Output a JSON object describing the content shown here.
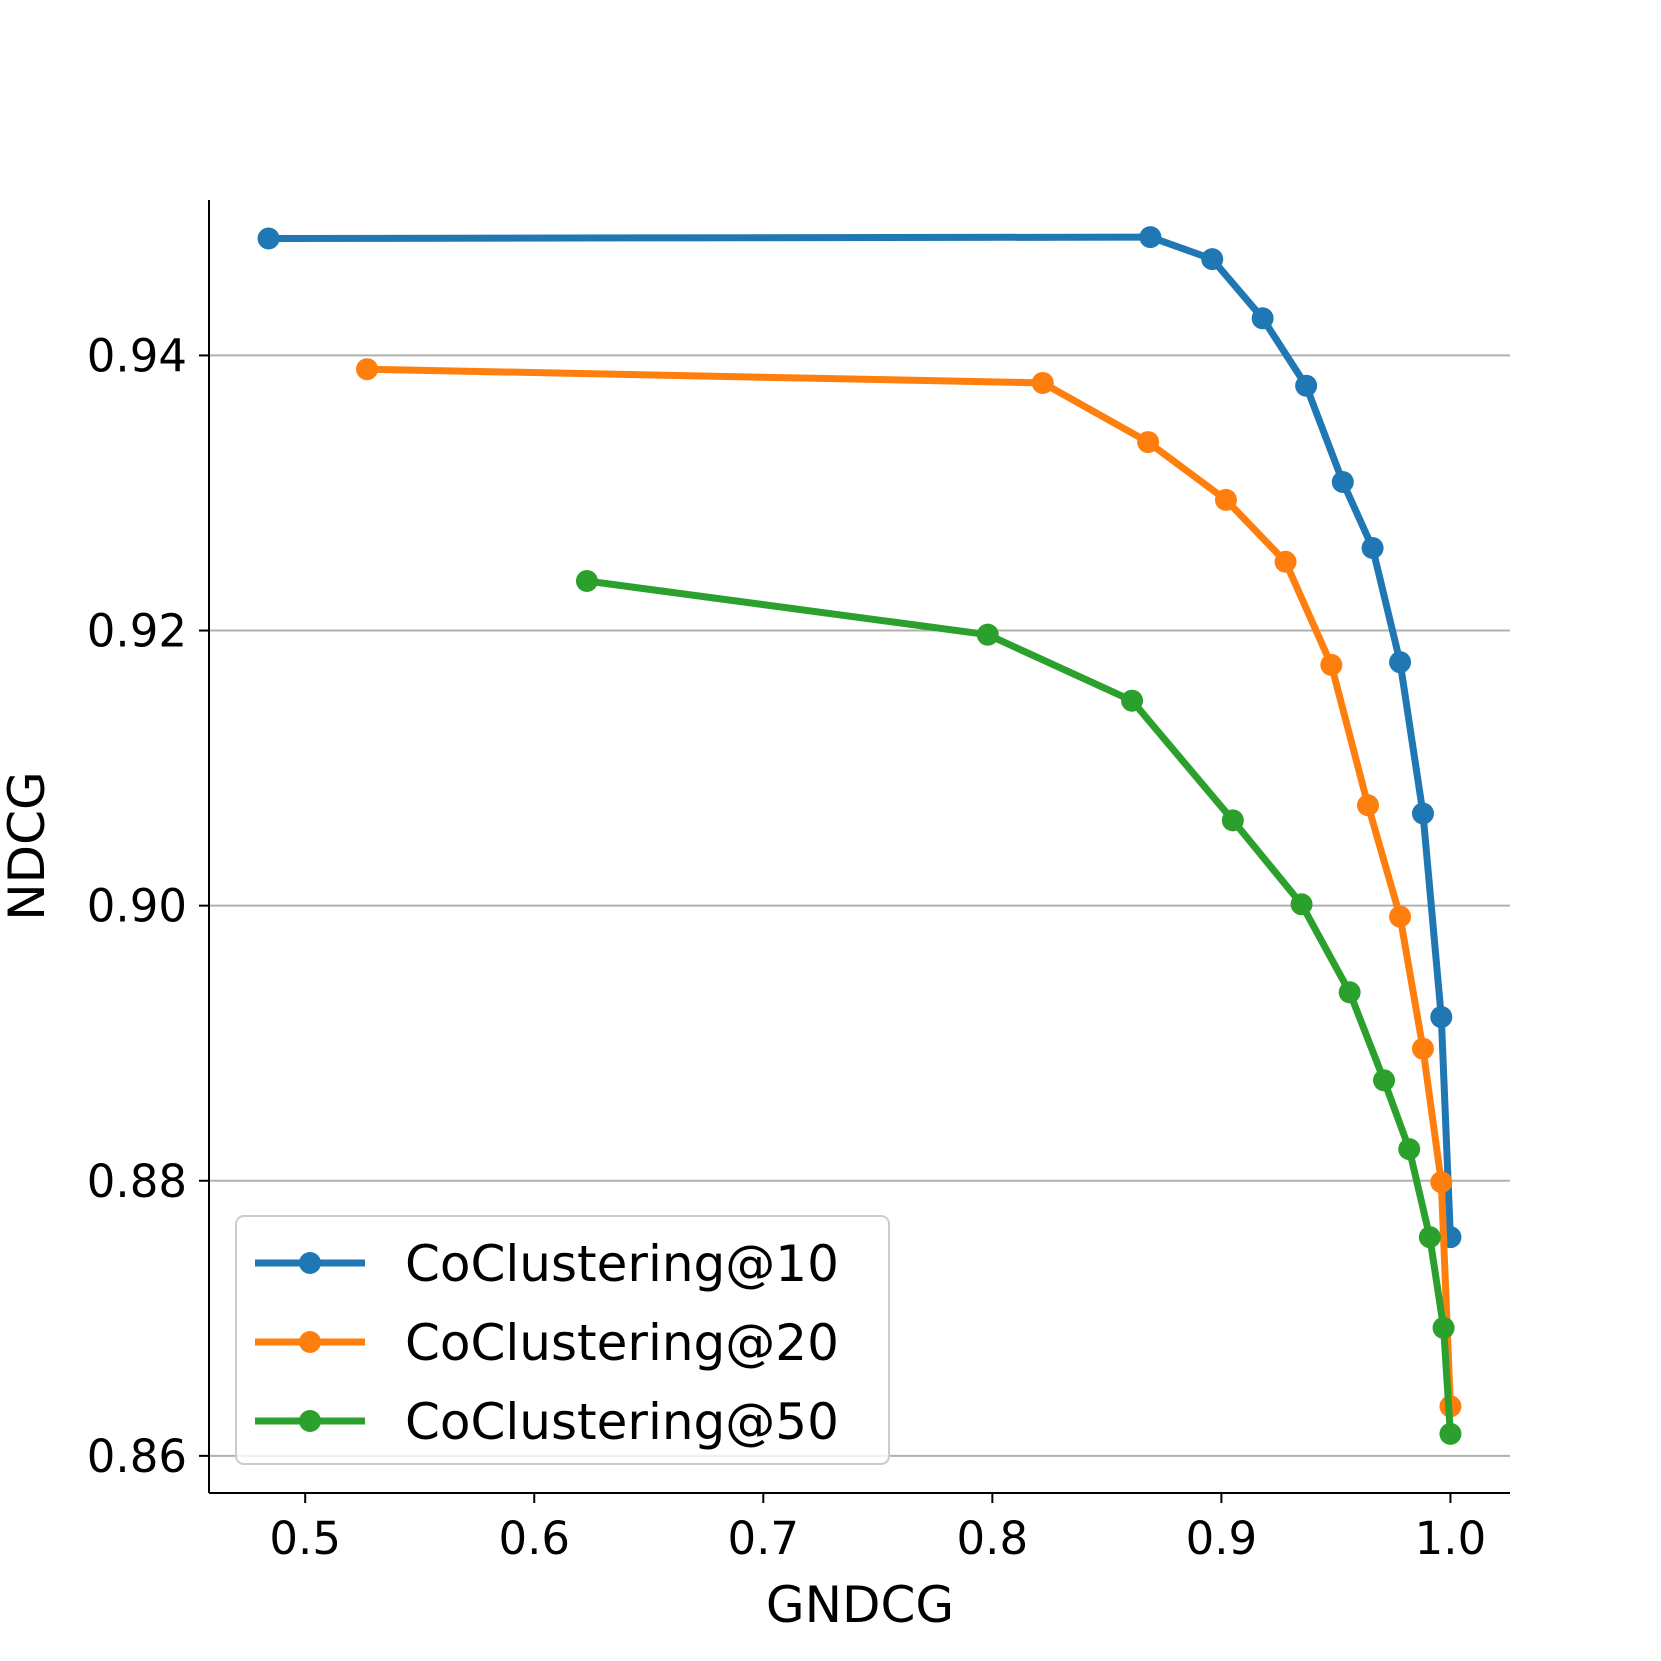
{
  "chart_data": {
    "type": "line",
    "title": "",
    "xlabel": "GNDCG",
    "ylabel": "NDCG",
    "xlim": [
      0.458,
      1.026
    ],
    "ylim": [
      0.8573,
      0.9513
    ],
    "xticks": [
      "0.5",
      "0.6",
      "0.7",
      "0.8",
      "0.9",
      "1.0"
    ],
    "yticks": [
      "0.86",
      "0.88",
      "0.90",
      "0.92",
      "0.94"
    ],
    "grid": "horizontal",
    "legend_position": "lower-left",
    "series": [
      {
        "name": "CoClustering@10",
        "color": "#1f77b4",
        "points": [
          [
            0.484,
            0.9485
          ],
          [
            0.869,
            0.9486
          ],
          [
            0.896,
            0.947
          ],
          [
            0.918,
            0.9427
          ],
          [
            0.937,
            0.9378
          ],
          [
            0.953,
            0.9308
          ],
          [
            0.966,
            0.926
          ],
          [
            0.978,
            0.9177
          ],
          [
            0.988,
            0.9067
          ],
          [
            0.996,
            0.8919
          ],
          [
            1.0,
            0.8759
          ]
        ]
      },
      {
        "name": "CoClustering@20",
        "color": "#ff7f0e",
        "points": [
          [
            0.527,
            0.939
          ],
          [
            0.822,
            0.938
          ],
          [
            0.868,
            0.9337
          ],
          [
            0.902,
            0.9295
          ],
          [
            0.928,
            0.925
          ],
          [
            0.948,
            0.9175
          ],
          [
            0.964,
            0.9073
          ],
          [
            0.978,
            0.8992
          ],
          [
            0.988,
            0.8896
          ],
          [
            0.996,
            0.8799
          ],
          [
            1.0,
            0.8636
          ]
        ]
      },
      {
        "name": "CoClustering@50",
        "color": "#2ca02c",
        "points": [
          [
            0.623,
            0.9236
          ],
          [
            0.798,
            0.9197
          ],
          [
            0.861,
            0.9149
          ],
          [
            0.905,
            0.9062
          ],
          [
            0.935,
            0.9001
          ],
          [
            0.956,
            0.8937
          ],
          [
            0.971,
            0.8873
          ],
          [
            0.982,
            0.8823
          ],
          [
            0.991,
            0.8759
          ],
          [
            0.997,
            0.8693
          ],
          [
            1.0,
            0.8616
          ]
        ]
      }
    ]
  }
}
